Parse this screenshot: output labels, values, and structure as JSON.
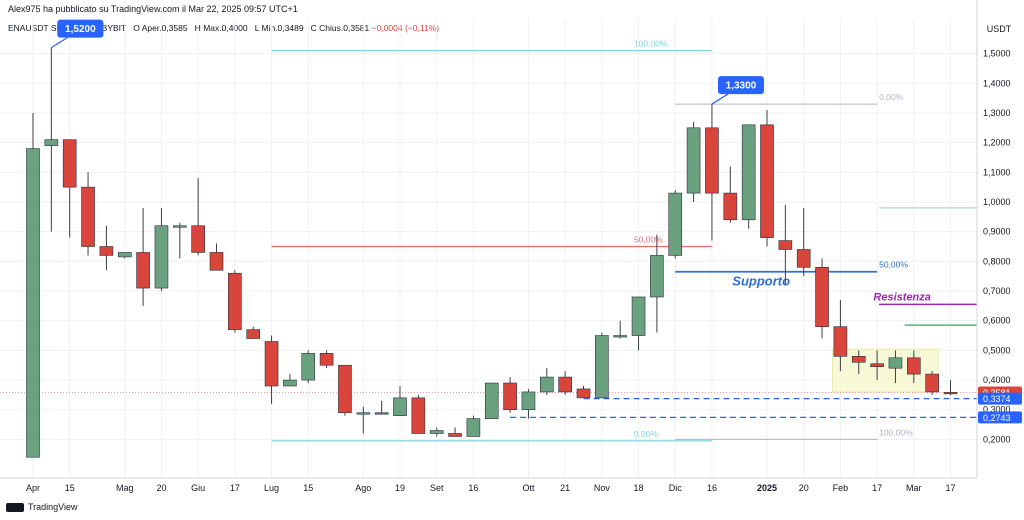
{
  "header": {
    "published_by": "Alex975 ha pubblicato su TradingView.com il Mar 22, 2025 09:57 UTC+1"
  },
  "ohlc": {
    "symbol": "ENAUSDT SPOT · 1W · BYBIT",
    "open_label": "O",
    "open_value": "Aper.0,3585",
    "high_label": "H",
    "high_value": "Max.0,4000",
    "low_label": "L",
    "low_value": "Min.0,3489",
    "close_label": "C",
    "close_value": "Chius.0,3581",
    "change": "−0,0004 (−0,11%)"
  },
  "footer": {
    "brand": "TradingView"
  },
  "colors": {
    "up": "#6aa27f",
    "down": "#d9453a",
    "grid": "#eef0f3",
    "axis": "#131722",
    "fib_cyan": "#7fd3dc",
    "fib_red": "#ef6b6b",
    "fib_blue": "#2962ff",
    "support": "#2f6fd6",
    "resistance_purple": "#9c27b0",
    "resistance_green": "#3aa35b",
    "zone": "#f3f7c4"
  },
  "chart_data": {
    "type": "candlestick",
    "unit": "USDT",
    "yaxis": {
      "ticks": [
        "0,2000",
        "0,3000",
        "0,4000",
        "0,5000",
        "0,6000",
        "0,7000",
        "0,8000",
        "0,9000",
        "1,0000",
        "1,1000",
        "1,2000",
        "1,3000",
        "1,4000",
        "1,5000"
      ],
      "tick_values": [
        0.2,
        0.3,
        0.4,
        0.5,
        0.6,
        0.7,
        0.8,
        0.9,
        1.0,
        1.1,
        1.2,
        1.3,
        1.4,
        1.5
      ],
      "range": [
        0.07,
        1.62
      ]
    },
    "xaxis": {
      "labels": [
        "Apr",
        "15",
        "Mag",
        "20",
        "Giu",
        "17",
        "Lug",
        "15",
        "Ago",
        "19",
        "Set",
        "16",
        "Ott",
        "21",
        "Nov",
        "18",
        "Dic",
        "16",
        "2025",
        "20",
        "Feb",
        "17",
        "Mar",
        "17"
      ],
      "label_weeks": [
        0,
        2,
        5,
        7,
        9,
        11,
        13,
        15,
        18,
        20,
        22,
        24,
        27,
        29,
        31,
        33,
        35,
        37,
        40,
        42,
        44,
        46,
        48,
        50
      ]
    },
    "candles": [
      {
        "o": 0.14,
        "h": 1.3,
        "l": 0.14,
        "c": 1.18
      },
      {
        "o": 1.19,
        "h": 1.52,
        "l": 0.9,
        "c": 1.21
      },
      {
        "o": 1.21,
        "h": 1.21,
        "l": 0.88,
        "c": 1.05
      },
      {
        "o": 1.05,
        "h": 1.1,
        "l": 0.82,
        "c": 0.85
      },
      {
        "o": 0.85,
        "h": 0.92,
        "l": 0.77,
        "c": 0.82
      },
      {
        "o": 0.815,
        "h": 0.83,
        "l": 0.81,
        "c": 0.83
      },
      {
        "o": 0.83,
        "h": 0.98,
        "l": 0.65,
        "c": 0.71
      },
      {
        "o": 0.71,
        "h": 0.98,
        "l": 0.7,
        "c": 0.92
      },
      {
        "o": 0.92,
        "h": 0.93,
        "l": 0.81,
        "c": 0.92
      },
      {
        "o": 0.92,
        "h": 1.08,
        "l": 0.82,
        "c": 0.83
      },
      {
        "o": 0.83,
        "h": 0.86,
        "l": 0.77,
        "c": 0.77
      },
      {
        "o": 0.76,
        "h": 0.77,
        "l": 0.56,
        "c": 0.57
      },
      {
        "o": 0.57,
        "h": 0.58,
        "l": 0.54,
        "c": 0.54
      },
      {
        "o": 0.53,
        "h": 0.55,
        "l": 0.32,
        "c": 0.38
      },
      {
        "o": 0.38,
        "h": 0.42,
        "l": 0.38,
        "c": 0.4
      },
      {
        "o": 0.4,
        "h": 0.5,
        "l": 0.39,
        "c": 0.49
      },
      {
        "o": 0.49,
        "h": 0.5,
        "l": 0.44,
        "c": 0.45
      },
      {
        "o": 0.45,
        "h": 0.45,
        "l": 0.28,
        "c": 0.29
      },
      {
        "o": 0.29,
        "h": 0.31,
        "l": 0.22,
        "c": 0.29
      },
      {
        "o": 0.29,
        "h": 0.33,
        "l": 0.29,
        "c": 0.285
      },
      {
        "o": 0.28,
        "h": 0.38,
        "l": 0.28,
        "c": 0.34
      },
      {
        "o": 0.34,
        "h": 0.35,
        "l": 0.22,
        "c": 0.22
      },
      {
        "o": 0.22,
        "h": 0.24,
        "l": 0.21,
        "c": 0.23
      },
      {
        "o": 0.22,
        "h": 0.24,
        "l": 0.21,
        "c": 0.21
      },
      {
        "o": 0.21,
        "h": 0.28,
        "l": 0.21,
        "c": 0.27
      },
      {
        "o": 0.27,
        "h": 0.38,
        "l": 0.27,
        "c": 0.39
      },
      {
        "o": 0.39,
        "h": 0.41,
        "l": 0.29,
        "c": 0.3
      },
      {
        "o": 0.3,
        "h": 0.37,
        "l": 0.27,
        "c": 0.36
      },
      {
        "o": 0.36,
        "h": 0.44,
        "l": 0.35,
        "c": 0.41
      },
      {
        "o": 0.41,
        "h": 0.43,
        "l": 0.35,
        "c": 0.36
      },
      {
        "o": 0.37,
        "h": 0.38,
        "l": 0.34,
        "c": 0.34
      },
      {
        "o": 0.34,
        "h": 0.56,
        "l": 0.34,
        "c": 0.55
      },
      {
        "o": 0.55,
        "h": 0.6,
        "l": 0.54,
        "c": 0.55
      },
      {
        "o": 0.55,
        "h": 0.68,
        "l": 0.5,
        "c": 0.68
      },
      {
        "o": 0.68,
        "h": 0.89,
        "l": 0.56,
        "c": 0.82
      },
      {
        "o": 0.82,
        "h": 1.04,
        "l": 0.81,
        "c": 1.03
      },
      {
        "o": 1.03,
        "h": 1.27,
        "l": 1.0,
        "c": 1.25
      },
      {
        "o": 1.25,
        "h": 1.33,
        "l": 0.87,
        "c": 1.03
      },
      {
        "o": 1.03,
        "h": 1.12,
        "l": 0.93,
        "c": 0.94
      },
      {
        "o": 0.94,
        "h": 1.26,
        "l": 0.91,
        "c": 1.26
      },
      {
        "o": 1.26,
        "h": 1.31,
        "l": 0.85,
        "c": 0.88
      },
      {
        "o": 0.87,
        "h": 0.99,
        "l": 0.72,
        "c": 0.84
      },
      {
        "o": 0.84,
        "h": 0.98,
        "l": 0.75,
        "c": 0.78
      },
      {
        "o": 0.78,
        "h": 0.81,
        "l": 0.54,
        "c": 0.58
      },
      {
        "o": 0.58,
        "h": 0.67,
        "l": 0.43,
        "c": 0.48
      },
      {
        "o": 0.48,
        "h": 0.5,
        "l": 0.42,
        "c": 0.46
      },
      {
        "o": 0.455,
        "h": 0.5,
        "l": 0.4,
        "c": 0.445
      },
      {
        "o": 0.44,
        "h": 0.5,
        "l": 0.39,
        "c": 0.475
      },
      {
        "o": 0.475,
        "h": 0.5,
        "l": 0.39,
        "c": 0.42
      },
      {
        "o": 0.42,
        "h": 0.43,
        "l": 0.35,
        "c": 0.36
      },
      {
        "o": 0.3585,
        "h": 0.4,
        "l": 0.3489,
        "c": 0.3581
      }
    ],
    "annotations": {
      "callouts": [
        {
          "label": "1,5200",
          "week": 1,
          "price": 1.52
        },
        {
          "label": "1,3300",
          "week": 37,
          "price": 1.33
        }
      ],
      "fib_left": {
        "week_start": 13,
        "week_end": 37,
        "levels": [
          {
            "label": "100,00%",
            "price": 1.51,
            "color": "#7fd3dc"
          },
          {
            "label": "50,00%",
            "price": 0.85,
            "color": "#ef6b6b"
          },
          {
            "label": "0,00%",
            "price": 0.195,
            "color": "#7fd3dc"
          }
        ]
      },
      "fib_right": {
        "week_start": 35,
        "week_end": 46,
        "levels": [
          {
            "label": "0,00%",
            "price": 1.33,
            "color": "#b2b5be"
          },
          {
            "label": "50,00%",
            "price": 0.765,
            "color": "#2f6fd6"
          },
          {
            "label": "100,00%",
            "price": 0.2,
            "color": "#b2b5be"
          }
        ]
      },
      "support_label": "Supporto",
      "resistance_label": "Resistenza",
      "cyan_right_price": 0.98,
      "purple_line_price": 0.655,
      "green_line_price": 0.585,
      "zone": {
        "week_start": 44,
        "week_end": 49,
        "low": 0.36,
        "high": 0.505
      },
      "dashed_levels": [
        0.3374,
        0.2743
      ],
      "price_labels": [
        {
          "label": "0,3581",
          "price": 0.3581,
          "color": "#d9453a"
        },
        {
          "label": "0,3374",
          "price": 0.3374,
          "color": "#2962ff"
        },
        {
          "label": "0,2743",
          "price": 0.2743,
          "color": "#2962ff"
        }
      ],
      "dotted_close_price": 0.3581
    }
  }
}
